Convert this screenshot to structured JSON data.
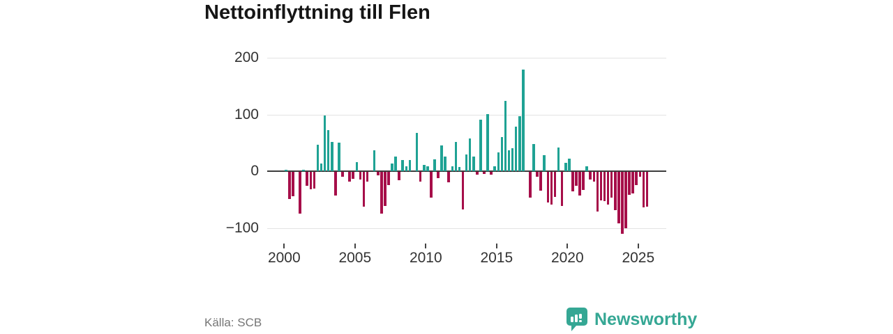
{
  "title": "Nettoinflyttning till Flen",
  "source": "Källa: SCB",
  "logo": {
    "text": "Newsworthy"
  },
  "colors": {
    "positive": "#1fa294",
    "negative": "#a60e49",
    "grid": "#e3e3e3",
    "zero_line": "#3c3c3c",
    "axis_text": "#333333",
    "source_text": "#757575",
    "title_text": "#161616",
    "brand_teal": "#35a794",
    "background": "#ffffff"
  },
  "chart_data": {
    "type": "bar",
    "title": "Nettoinflyttning till Flen",
    "frequency": "quarterly",
    "start_period": "2000 Q1",
    "end_period": "2025 Q3",
    "xlabel": "",
    "ylabel": "",
    "grid": "on",
    "ylim": [
      -130,
      230
    ],
    "y_gridlines": [
      200,
      100,
      0,
      -100
    ],
    "y_tick_labels": [
      "200",
      "100",
      "0",
      "−100"
    ],
    "x_ticks": [
      2000,
      2005,
      2010,
      2015,
      2020,
      2025
    ],
    "x_tick_labels": [
      "2000",
      "2005",
      "2010",
      "2015",
      "2020",
      "2025"
    ],
    "values": [
      3,
      -48,
      -43,
      0,
      -74,
      3,
      -25,
      -31,
      -29,
      47,
      14,
      98,
      72,
      51,
      -42,
      50,
      -8,
      0,
      -17,
      -12,
      16,
      -14,
      -61,
      -17,
      0,
      37,
      -6,
      -74,
      -60,
      -23,
      14,
      26,
      -15,
      20,
      9,
      20,
      0,
      68,
      -17,
      11,
      8,
      -46,
      21,
      -11,
      46,
      26,
      -19,
      9,
      52,
      7,
      -66,
      30,
      58,
      26,
      -5,
      91,
      -4,
      101,
      -5,
      9,
      33,
      60,
      124,
      37,
      41,
      78,
      97,
      179,
      0,
      -46,
      48,
      -9,
      -33,
      28,
      -54,
      -58,
      -44,
      42,
      -60,
      15,
      22,
      -34,
      -25,
      -42,
      -32,
      8,
      -13,
      -17,
      -70,
      -50,
      -52,
      -58,
      -46,
      -68,
      -91,
      -109,
      -99,
      -40,
      -38,
      -23,
      -9,
      -62,
      -61
    ]
  }
}
